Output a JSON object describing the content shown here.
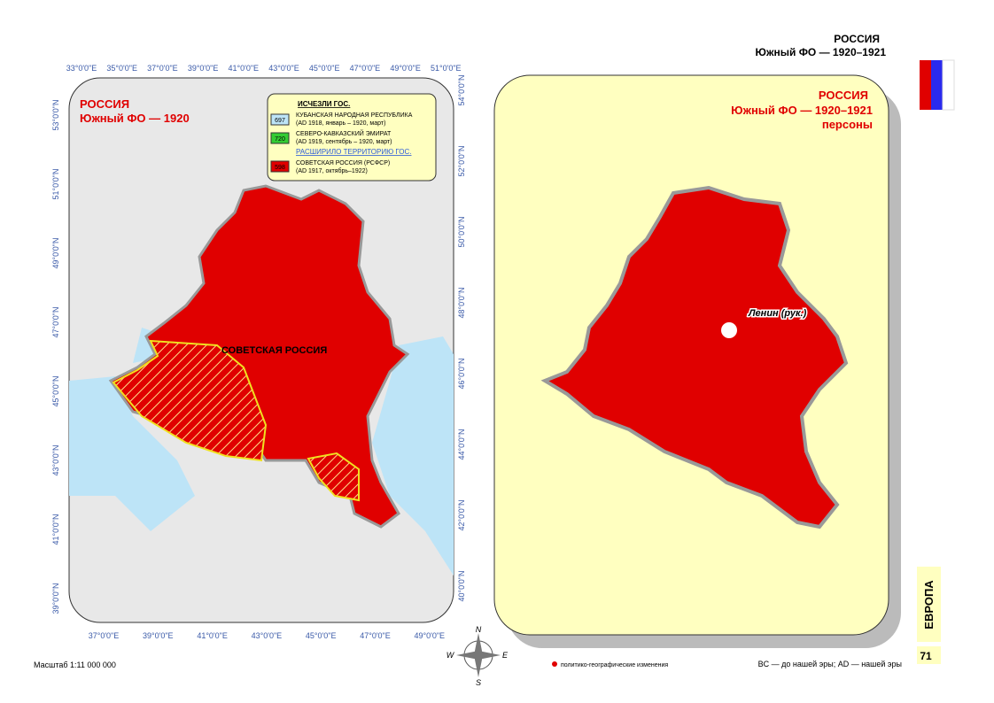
{
  "header": {
    "title": "РОССИЯ",
    "subtitle": "Южный ФО — 1920–1921"
  },
  "left_map": {
    "title": "РОССИЯ",
    "subtitle": "Южный ФО —  1920",
    "region_label": "СОВЕТСКАЯ РОССИЯ",
    "top_ticks": [
      "33°0'0\"E",
      "35°0'0\"E",
      "37°0'0\"E",
      "39°0'0\"E",
      "41°0'0\"E",
      "43°0'0\"E",
      "45°0'0\"E",
      "47°0'0\"E",
      "49°0'0\"E",
      "51°0'0\"E"
    ],
    "bottom_ticks": [
      "37°0'0\"E",
      "39°0'0\"E",
      "41°0'0\"E",
      "43°0'0\"E",
      "45°0'0\"E",
      "47°0'0\"E",
      "49°0'0\"E"
    ],
    "left_ticks": [
      "53°0'0\"N",
      "51°0'0\"N",
      "49°0'0\"N",
      "47°0'0\"N",
      "45°0'0\"N",
      "43°0'0\"N",
      "41°0'0\"N",
      "39°0'0\"N"
    ],
    "right_ticks": [
      "54°0'0\"N",
      "52°0'0\"N",
      "50°0'0\"N",
      "48°0'0\"N",
      "46°0'0\"N",
      "44°0'0\"N",
      "42°0'0\"N",
      "40°0'0\"N"
    ]
  },
  "legend": {
    "heading_disappeared": "ИСЧЕЗЛИ ГОС.",
    "items_disappeared": [
      {
        "code": "697",
        "name": "КУБАНСКАЯ НАРОДНАЯ РЕСПУБЛИКА",
        "dates": "(AD 1918, январь – 1920, март)"
      },
      {
        "code": "720",
        "name": "СЕВЕРО-КАВКАЗСКИЙ ЭМИРАТ",
        "dates": "(AD 1919, сентябрь – 1920, март)"
      }
    ],
    "heading_expanded": "РАСШИРИЛО ТЕРРИТОРИЮ ГОС.",
    "items_expanded": [
      {
        "code": "598",
        "name": "СОВЕТСКАЯ РОССИЯ (РСФСР)",
        "dates": "(AD 1917, октябрь–1922)"
      }
    ]
  },
  "right_map": {
    "title": "РОССИЯ",
    "subtitle": "Южный ФО — 1920–1921",
    "subtitle2": "персоны",
    "person": "Ленин (рук.)"
  },
  "compass": {
    "n": "N",
    "w": "W",
    "e": "E",
    "s": "S"
  },
  "footer": {
    "scale": "Масштаб 1:11 000 000",
    "changes": "политико-географические изменения",
    "era": "BC — до нашей эры; AD — нашей эры",
    "section": "ЕВРОПА",
    "page": "71"
  }
}
